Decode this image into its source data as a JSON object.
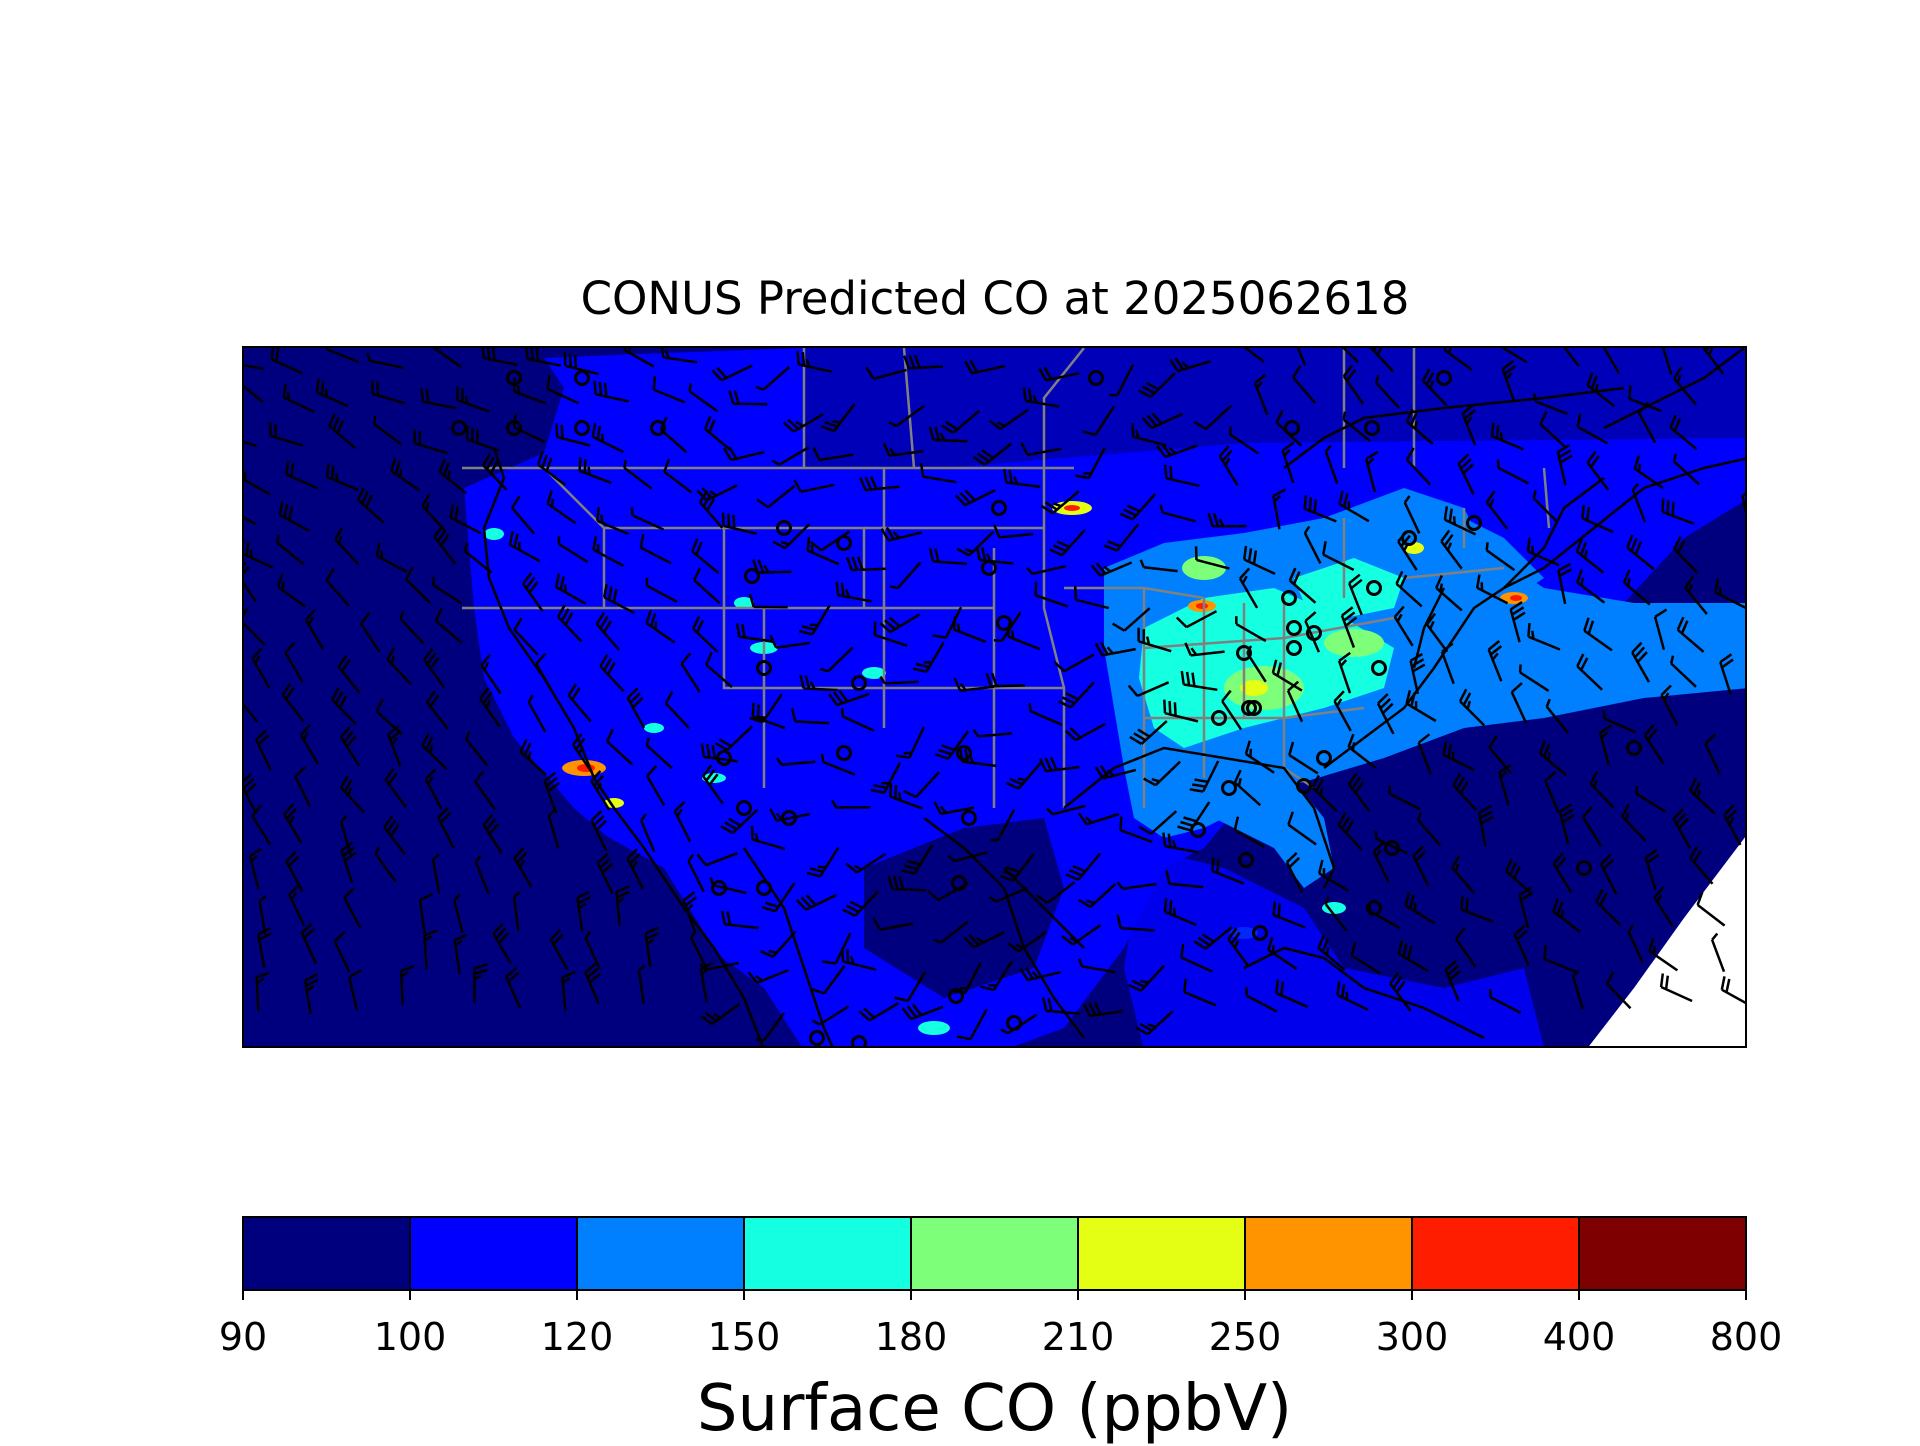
{
  "title": "CONUS Predicted CO at 2025062618",
  "colorbar": {
    "label": "Surface CO (ppbV)",
    "ticks": [
      "90",
      "100",
      "120",
      "150",
      "180",
      "210",
      "250",
      "300",
      "400",
      "800"
    ],
    "colors": [
      "#00007f",
      "#0000ff",
      "#0080ff",
      "#15ffe1",
      "#7dff7a",
      "#e4ff13",
      "#ff9400",
      "#ff1d00",
      "#7f0000"
    ]
  },
  "map": {
    "background_color": "#00007f",
    "state_border_color": "#808080",
    "coastline_color": "#000000",
    "wind_barb_color": "#000000",
    "layers": [
      "surface-co-field",
      "state-borders",
      "coastlines",
      "wind-barbs",
      "calm-wind-circles"
    ]
  }
}
